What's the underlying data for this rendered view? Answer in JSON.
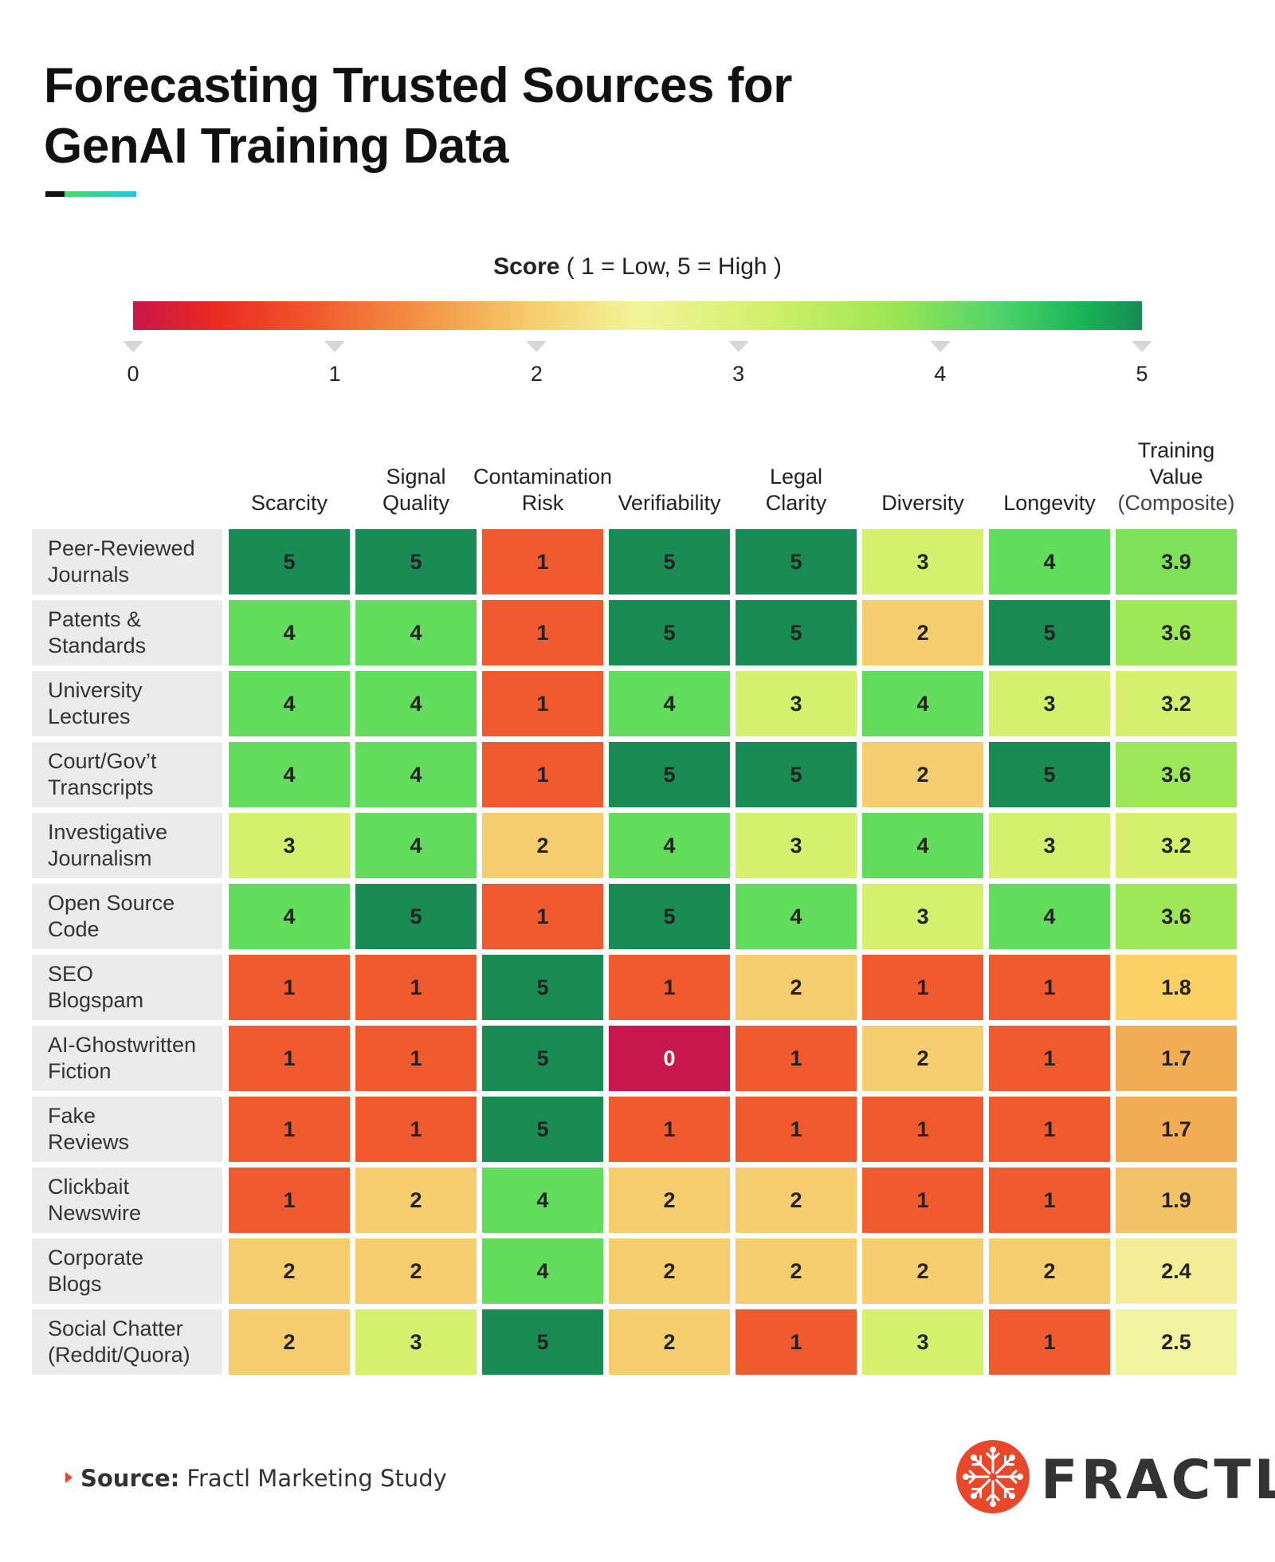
{
  "title_lines": [
    "Forecasting Trusted Sources for",
    "GenAI Training Data"
  ],
  "legend": {
    "label_bold": "Score",
    "label_rest": " ( 1 = Low, 5 = High )",
    "ticks": [
      "0",
      "1",
      "2",
      "3",
      "4",
      "5"
    ],
    "range": [
      0,
      5
    ]
  },
  "colors": {
    "0": "#c8174a",
    "1": "#f05a2f",
    "2": "#f5cd6e",
    "3": "#d4f06d",
    "4": "#63db5d",
    "5": "#198c56"
  },
  "chart_data": {
    "type": "heatmap",
    "title": "Forecasting Trusted Sources for GenAI Training Data",
    "columns": [
      {
        "lines": [
          "Scarcity"
        ]
      },
      {
        "lines": [
          "Signal",
          "Quality"
        ]
      },
      {
        "lines": [
          "Contamination",
          "Risk"
        ]
      },
      {
        "lines": [
          "Verifiability"
        ]
      },
      {
        "lines": [
          "Legal",
          "Clarity"
        ]
      },
      {
        "lines": [
          "Diversity"
        ]
      },
      {
        "lines": [
          "Longevity"
        ]
      },
      {
        "lines": [
          "Training",
          "Value"
        ],
        "sub": "(Composite)"
      }
    ],
    "rows": [
      {
        "lines": [
          "Peer-Reviewed",
          "Journals"
        ],
        "values": [
          5,
          5,
          1,
          5,
          5,
          3,
          4,
          3.9
        ]
      },
      {
        "lines": [
          "Patents &",
          "Standards"
        ],
        "values": [
          4,
          4,
          1,
          5,
          5,
          2,
          5,
          3.6
        ]
      },
      {
        "lines": [
          "University",
          "Lectures"
        ],
        "values": [
          4,
          4,
          1,
          4,
          3,
          4,
          3,
          3.2
        ]
      },
      {
        "lines": [
          "Court/Gov’t",
          "Transcripts"
        ],
        "values": [
          4,
          4,
          1,
          5,
          5,
          2,
          5,
          3.6
        ]
      },
      {
        "lines": [
          "Investigative",
          "Journalism"
        ],
        "values": [
          3,
          4,
          2,
          4,
          3,
          4,
          3,
          3.2
        ]
      },
      {
        "lines": [
          "Open Source",
          "Code"
        ],
        "values": [
          4,
          5,
          1,
          5,
          4,
          3,
          4,
          3.6
        ]
      },
      {
        "lines": [
          "SEO",
          "Blogspam"
        ],
        "values": [
          1,
          1,
          5,
          1,
          2,
          1,
          1,
          1.8
        ]
      },
      {
        "lines": [
          "AI-Ghostwritten",
          "Fiction"
        ],
        "values": [
          1,
          1,
          5,
          0,
          1,
          2,
          1,
          1.7
        ]
      },
      {
        "lines": [
          "Fake",
          "Reviews"
        ],
        "values": [
          1,
          1,
          5,
          1,
          1,
          1,
          1,
          1.7
        ]
      },
      {
        "lines": [
          "Clickbait",
          "Newswire"
        ],
        "values": [
          1,
          2,
          4,
          2,
          2,
          1,
          1,
          1.9
        ]
      },
      {
        "lines": [
          "Corporate",
          "Blogs"
        ],
        "values": [
          2,
          2,
          4,
          2,
          2,
          2,
          2,
          2.4
        ]
      },
      {
        "lines": [
          "Social Chatter",
          "(Reddit/Quora)"
        ],
        "values": [
          2,
          3,
          5,
          2,
          1,
          3,
          1,
          2.5
        ]
      }
    ],
    "composite_colors": {
      "3.9": "#7fe15a",
      "3.6": "#9de858",
      "3.2": "#d4f06d",
      "1.8": "#fbd166",
      "1.7": "#f2ad55",
      "1.9": "#f3c166",
      "2.4": "#f2ed96",
      "2.5": "#f2f39e"
    }
  },
  "footer": {
    "source_label": "Source:",
    "source_text": " Fractl Marketing Study",
    "brand": "FRACTL",
    "brand_color": "#e8472a"
  }
}
